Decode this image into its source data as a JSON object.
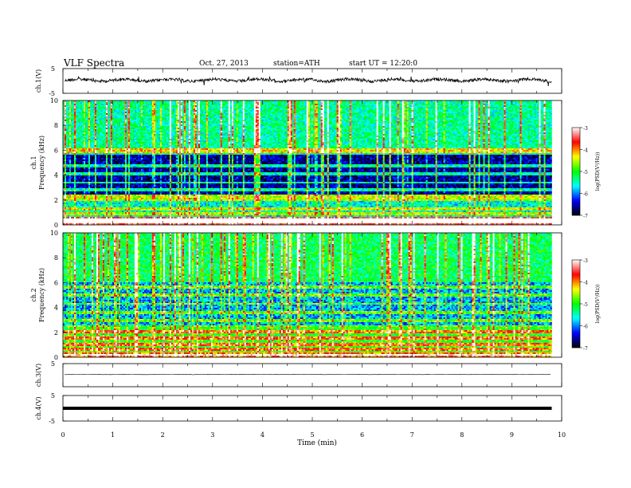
{
  "header": {
    "title": "VLF Spectra",
    "date": "Oct. 27, 2013",
    "station": "station=ATH",
    "start": "start UT = 12:20:0"
  },
  "chart_data": {
    "type": "heatmap",
    "title": "VLF Spectra",
    "xlabel": "Time (min)",
    "xlim": [
      0,
      10
    ],
    "x_ticks": [
      "0",
      "1",
      "2",
      "3",
      "4",
      "5",
      "6",
      "7",
      "8",
      "9",
      "10"
    ],
    "data_end_min": 9.8,
    "colormap": [
      "#000000",
      "#0000ff",
      "#00ffff",
      "#00ff00",
      "#ffff00",
      "#ff0000",
      "#ffffff"
    ],
    "panels": [
      {
        "id": "ch1",
        "type": "line",
        "ylabel": "ch.1(V)",
        "ylim": [
          -5,
          5
        ],
        "y_ticks": [
          "5",
          "-5"
        ],
        "baseline_v": 0.3,
        "noise_amplitude_v": 1.0,
        "trace_style": "noisy"
      },
      {
        "id": "ch1-spec",
        "type": "spectrogram",
        "ylabel_line1": "ch.1",
        "ylabel_line2": "Frequency (kHz)",
        "ylim_khz": [
          0,
          10
        ],
        "y_ticks": [
          "0",
          "2",
          "4",
          "6",
          "8",
          "10"
        ],
        "colorbar": {
          "label": "log(PSD(V²/Hz))",
          "range": [
            -7,
            -3
          ],
          "ticks": [
            "-3",
            "-4",
            "-5",
            "-6",
            "-7"
          ]
        },
        "bands": [
          {
            "from": 0,
            "to": 0.6,
            "level": -3.6
          },
          {
            "from": 0.6,
            "to": 2.5,
            "level": -5.6
          },
          {
            "from": 2.5,
            "to": 5.8,
            "level": -6.6
          },
          {
            "from": 5.8,
            "to": 10,
            "level": -5.4
          }
        ],
        "tones_khz": [
          0.3,
          0.45,
          0.9,
          1.3,
          2.0,
          2.3,
          2.8,
          3.4,
          4.1,
          4.7,
          5.8,
          6.0
        ]
      },
      {
        "id": "ch2-spec",
        "type": "spectrogram",
        "ylabel_line1": "ch.2",
        "ylabel_line2": "Frequency (kHz)",
        "ylim_khz": [
          0,
          10
        ],
        "y_ticks": [
          "0",
          "2",
          "4",
          "6",
          "8",
          "10"
        ],
        "colorbar": {
          "label": "log(PSD(V²/Hz))",
          "range": [
            -7,
            -3
          ],
          "ticks": [
            "-3",
            "-4",
            "-5",
            "-6",
            "-7"
          ]
        },
        "bands": [
          {
            "from": 0,
            "to": 0.4,
            "level": -4.0
          },
          {
            "from": 0.4,
            "to": 2.5,
            "level": -5.0
          },
          {
            "from": 2.5,
            "to": 6.0,
            "level": -5.9
          },
          {
            "from": 6.0,
            "to": 10,
            "level": -5.2
          }
        ],
        "tones_khz": [
          0.2,
          0.6,
          1.0,
          1.5,
          2.1,
          2.5,
          3.0,
          3.6,
          4.3,
          5.0,
          5.6
        ]
      },
      {
        "id": "ch3",
        "type": "line",
        "ylabel": "ch.3(V)",
        "ylim": [
          -5,
          5
        ],
        "y_ticks": [
          "5"
        ],
        "baseline_v": 0.3,
        "noise_amplitude_v": 0.08,
        "trace_style": "thin"
      },
      {
        "id": "ch4",
        "type": "line",
        "ylabel": "ch.4(V)",
        "ylim": [
          -5,
          5
        ],
        "y_ticks": [
          "5",
          "-5"
        ],
        "baseline_v": 0.0,
        "noise_amplitude_v": 0.0,
        "trace_style": "thick"
      }
    ]
  }
}
